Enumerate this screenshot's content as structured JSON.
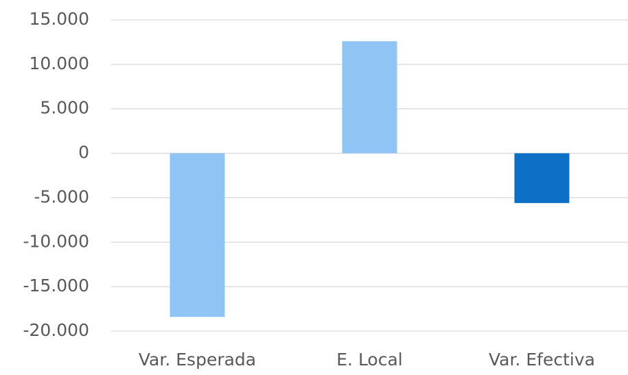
{
  "chart_data": {
    "type": "bar",
    "categories": [
      "Var. Esperada",
      "E. Local",
      "Var. Efectiva"
    ],
    "values": [
      -18400,
      12600,
      -5600
    ],
    "colors": [
      "#90c4f5",
      "#90c4f5",
      "#0e6fc7"
    ],
    "ylim": [
      -20000,
      15000
    ],
    "yticks": [
      {
        "value": -20000,
        "label": "-20.000"
      },
      {
        "value": -15000,
        "label": "-15.000"
      },
      {
        "value": -10000,
        "label": "-10.000"
      },
      {
        "value": -5000,
        "label": "-5.000"
      },
      0,
      {
        "value": 5000,
        "label": "5.000"
      },
      {
        "value": 10000,
        "label": "10.000"
      },
      {
        "value": 15000,
        "label": "15.000"
      }
    ],
    "grid": true
  }
}
